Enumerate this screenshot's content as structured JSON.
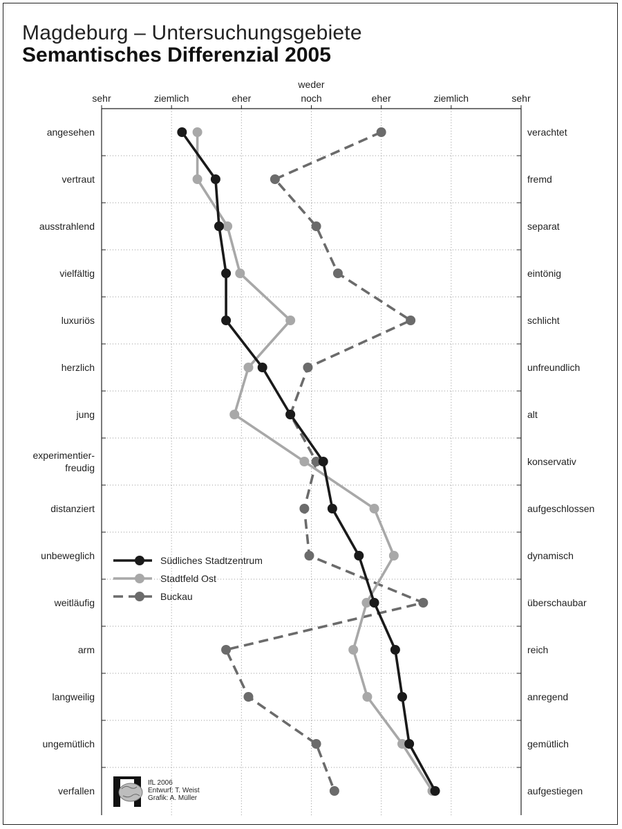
{
  "title": "Magdeburg – Untersuchungsgebiete",
  "subtitle": "Semantisches Differenzial 2005",
  "credits": {
    "line1": "IfL 2006",
    "line2": "Entwurf: T. Weist",
    "line3": "Grafik: A. Müller"
  },
  "chart_data": {
    "type": "line",
    "scale_labels": [
      "sehr",
      "ziemlich",
      "eher",
      "weder\nnoch",
      "eher",
      "ziemlich",
      "sehr"
    ],
    "x_scale": [
      -3,
      3
    ],
    "rows_left": [
      "angesehen",
      "vertraut",
      "ausstrahlend",
      "vielfältig",
      "luxuriös",
      "herzlich",
      "jung",
      "experimentier-\nfreudig",
      "distanziert",
      "unbeweglich",
      "weitläufig",
      "arm",
      "langweilig",
      "ungemütlich",
      "verfallen"
    ],
    "rows_right": [
      "verachtet",
      "fremd",
      "separat",
      "eintönig",
      "schlicht",
      "unfreundlich",
      "alt",
      "konservativ",
      "aufgeschlossen",
      "dynamisch",
      "überschaubar",
      "reich",
      "anregend",
      "gemütlich",
      "aufgestiegen"
    ],
    "series": [
      {
        "name": "Südliches Stadtzentrum",
        "color": "#1a1a1a",
        "style": "solid",
        "values": [
          -1.85,
          -1.37,
          -1.32,
          -1.22,
          -1.22,
          -0.7,
          -0.3,
          0.17,
          0.3,
          0.68,
          0.9,
          1.2,
          1.3,
          1.4,
          1.77
        ]
      },
      {
        "name": "Stadtfeld Ost",
        "color": "#a8a8a8",
        "style": "solid",
        "values": [
          -1.63,
          -1.63,
          -1.2,
          -1.02,
          -0.3,
          -0.9,
          -1.1,
          -0.1,
          0.9,
          1.18,
          0.79,
          0.6,
          0.8,
          1.3,
          1.73
        ]
      },
      {
        "name": "Buckau",
        "color": "#6b6b6b",
        "style": "dashed",
        "values": [
          1.0,
          -0.52,
          0.07,
          0.38,
          1.42,
          -0.05,
          -0.3,
          0.07,
          -0.1,
          -0.03,
          1.6,
          -1.22,
          -0.9,
          0.07,
          0.33
        ]
      }
    ]
  }
}
